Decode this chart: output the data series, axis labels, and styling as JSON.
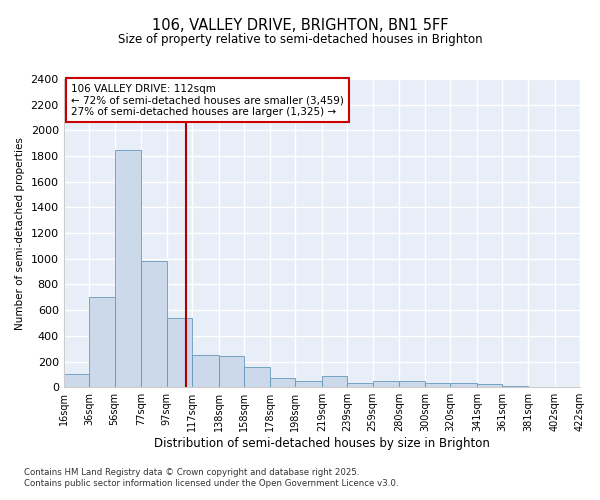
{
  "title_line1": "106, VALLEY DRIVE, BRIGHTON, BN1 5FF",
  "title_line2": "Size of property relative to semi-detached houses in Brighton",
  "xlabel": "Distribution of semi-detached houses by size in Brighton",
  "ylabel": "Number of semi-detached properties",
  "footer_line1": "Contains HM Land Registry data © Crown copyright and database right 2025.",
  "footer_line2": "Contains public sector information licensed under the Open Government Licence v3.0.",
  "property_size": 112,
  "annotation_title": "106 VALLEY DRIVE: 112sqm",
  "annotation_line1": "← 72% of semi-detached houses are smaller (3,459)",
  "annotation_line2": "27% of semi-detached houses are larger (1,325) →",
  "bar_color": "#ccd9ea",
  "bar_edge_color": "#6699bb",
  "vline_color": "#aa0000",
  "annotation_box_color": "#cc0000",
  "background_color": "#e8eef8",
  "grid_color": "#ffffff",
  "bin_edges": [
    16,
    36,
    56,
    77,
    97,
    117,
    138,
    158,
    178,
    198,
    219,
    239,
    259,
    280,
    300,
    320,
    341,
    361,
    381,
    402,
    422
  ],
  "bar_heights": [
    100,
    700,
    1850,
    980,
    540,
    250,
    245,
    155,
    75,
    50,
    85,
    30,
    45,
    45,
    30,
    30,
    25,
    10,
    5,
    5
  ],
  "ylim": [
    0,
    2400
  ],
  "yticks": [
    0,
    200,
    400,
    600,
    800,
    1000,
    1200,
    1400,
    1600,
    1800,
    2000,
    2200,
    2400
  ],
  "xtick_labels": [
    "16sqm",
    "36sqm",
    "56sqm",
    "77sqm",
    "97sqm",
    "117sqm",
    "138sqm",
    "158sqm",
    "178sqm",
    "198sqm",
    "219sqm",
    "239sqm",
    "259sqm",
    "280sqm",
    "300sqm",
    "320sqm",
    "341sqm",
    "361sqm",
    "381sqm",
    "402sqm",
    "422sqm"
  ]
}
